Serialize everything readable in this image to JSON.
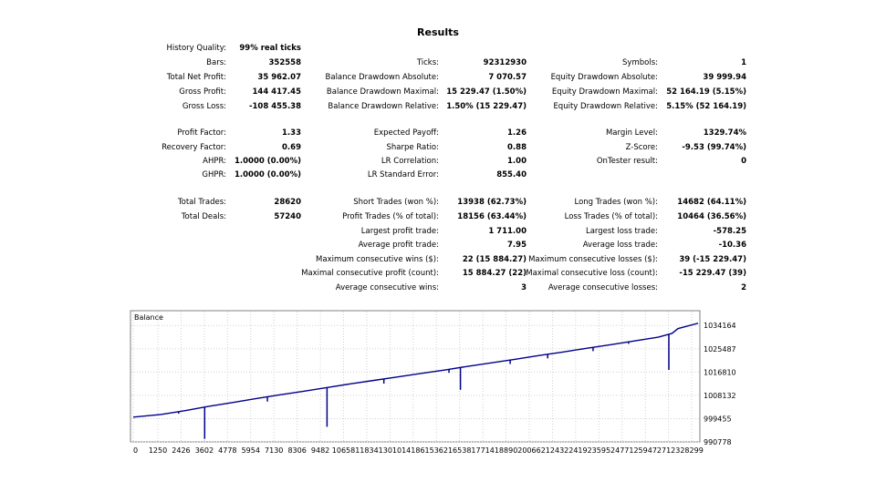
{
  "report": {
    "title": "Results",
    "rows": [
      [
        {
          "label": "History Quality:",
          "value": "99% real ticks"
        }
      ],
      [
        {
          "label": "Bars:",
          "value": "352558"
        },
        {
          "label": "Ticks:",
          "value": "92312930"
        },
        {
          "label": "Symbols:",
          "value": "1"
        }
      ],
      [
        {
          "label": "Total Net Profit:",
          "value": "35 962.07"
        },
        {
          "label": "Balance Drawdown Absolute:",
          "value": "7 070.57"
        },
        {
          "label": "Equity Drawdown Absolute:",
          "value": "39 999.94"
        }
      ],
      [
        {
          "label": "Gross Profit:",
          "value": "144 417.45"
        },
        {
          "label": "Balance Drawdown Maximal:",
          "value": "15 229.47 (1.50%)"
        },
        {
          "label": "Equity Drawdown Maximal:",
          "value": "52 164.19 (5.15%)"
        }
      ],
      [
        {
          "label": "Gross Loss:",
          "value": "-108 455.38"
        },
        {
          "label": "Balance Drawdown Relative:",
          "value": "1.50% (15 229.47)"
        },
        {
          "label": "Equity Drawdown Relative:",
          "value": "5.15% (52 164.19)"
        }
      ],
      [
        {
          "label": "Profit Factor:",
          "value": "1.33"
        },
        {
          "label": "Expected Payoff:",
          "value": "1.26"
        },
        {
          "label": "Margin Level:",
          "value": "1329.74%"
        }
      ],
      [
        {
          "label": "Recovery Factor:",
          "value": "0.69"
        },
        {
          "label": "Sharpe Ratio:",
          "value": "0.88"
        },
        {
          "label": "Z-Score:",
          "value": "-9.53 (99.74%)"
        }
      ],
      [
        {
          "label": "AHPR:",
          "value": "1.0000 (0.00%)"
        },
        {
          "label": "LR Correlation:",
          "value": "1.00"
        },
        {
          "label": "OnTester result:",
          "value": "0"
        }
      ],
      [
        {
          "label": "GHPR:",
          "value": "1.0000 (0.00%)"
        },
        {
          "label": "LR Standard Error:",
          "value": "855.40"
        }
      ],
      [
        {
          "label": "Total Trades:",
          "value": "28620"
        },
        {
          "label": "Short Trades (won %):",
          "value": "13938 (62.73%)"
        },
        {
          "label": "Long Trades (won %):",
          "value": "14682 (64.11%)"
        }
      ],
      [
        {
          "label": "Total Deals:",
          "value": "57240"
        },
        {
          "label": "Profit Trades (% of total):",
          "value": "18156 (63.44%)"
        },
        {
          "label": "Loss Trades (% of total):",
          "value": "10464 (36.56%)"
        }
      ],
      [
        null,
        {
          "label": "Largest profit trade:",
          "value": "1 711.00"
        },
        {
          "label": "Largest loss trade:",
          "value": "-578.25"
        }
      ],
      [
        null,
        {
          "label": "Average profit trade:",
          "value": "7.95"
        },
        {
          "label": "Average loss trade:",
          "value": "-10.36"
        }
      ],
      [
        null,
        {
          "label": "Maximum consecutive wins ($):",
          "value": "22 (15 884.27)"
        },
        {
          "label": "Maximum consecutive losses ($):",
          "value": "39 (-15 229.47)"
        }
      ],
      [
        null,
        {
          "label": "Maximal consecutive profit (count):",
          "value": "15 884.27 (22)"
        },
        {
          "label": "Maximal consecutive loss (count):",
          "value": "-15 229.47 (39)"
        }
      ],
      [
        null,
        {
          "label": "Average consecutive wins:",
          "value": "3"
        },
        {
          "label": "Average consecutive losses:",
          "value": "2"
        }
      ]
    ]
  },
  "chart_data": {
    "type": "line",
    "title": "Balance",
    "line_color": "#00008b",
    "xlim": [
      0,
      28620
    ],
    "ylim": [
      990778,
      1039000
    ],
    "x_ticks": [
      0,
      1250,
      2426,
      3602,
      4778,
      5954,
      7130,
      8306,
      9482,
      10658,
      11834,
      13010,
      14186,
      15362,
      16538,
      17714,
      18890,
      20066,
      21243,
      22419,
      23595,
      24771,
      25947,
      27123,
      28299
    ],
    "y_ticks": [
      990778,
      999455,
      1008132,
      1016810,
      1025487,
      1034164
    ],
    "series": [
      {
        "values": [
          [
            0,
            1000000
          ],
          [
            1400,
            1001000
          ],
          [
            2600,
            1002400
          ],
          [
            3800,
            1004000
          ],
          [
            5000,
            1005400
          ],
          [
            6200,
            1006900
          ],
          [
            7400,
            1008300
          ],
          [
            8600,
            1009600
          ],
          [
            9800,
            1011000
          ],
          [
            11000,
            1012400
          ],
          [
            12200,
            1013700
          ],
          [
            13400,
            1015000
          ],
          [
            14600,
            1016300
          ],
          [
            15800,
            1017600
          ],
          [
            17000,
            1019000
          ],
          [
            18200,
            1020300
          ],
          [
            19400,
            1021600
          ],
          [
            20600,
            1023000
          ],
          [
            21800,
            1024300
          ],
          [
            23000,
            1025700
          ],
          [
            24200,
            1027000
          ],
          [
            25400,
            1028400
          ],
          [
            26600,
            1029800
          ],
          [
            27300,
            1031200
          ],
          [
            27600,
            1033000
          ],
          [
            28620,
            1035000
          ]
        ]
      }
    ],
    "spikes": [
      {
        "x": 3620,
        "y": 991900
      },
      {
        "x": 9820,
        "y": 996400
      },
      {
        "x": 16580,
        "y": 1010200
      },
      {
        "x": 27140,
        "y": 1017600
      },
      {
        "x": 6800,
        "y": 1005800
      },
      {
        "x": 12700,
        "y": 1012500
      },
      {
        "x": 16000,
        "y": 1016500
      },
      {
        "x": 19100,
        "y": 1019800
      },
      {
        "x": 21000,
        "y": 1021900
      },
      {
        "x": 23300,
        "y": 1024600
      },
      {
        "x": 25100,
        "y": 1027300
      },
      {
        "x": 2300,
        "y": 1001300
      }
    ]
  }
}
